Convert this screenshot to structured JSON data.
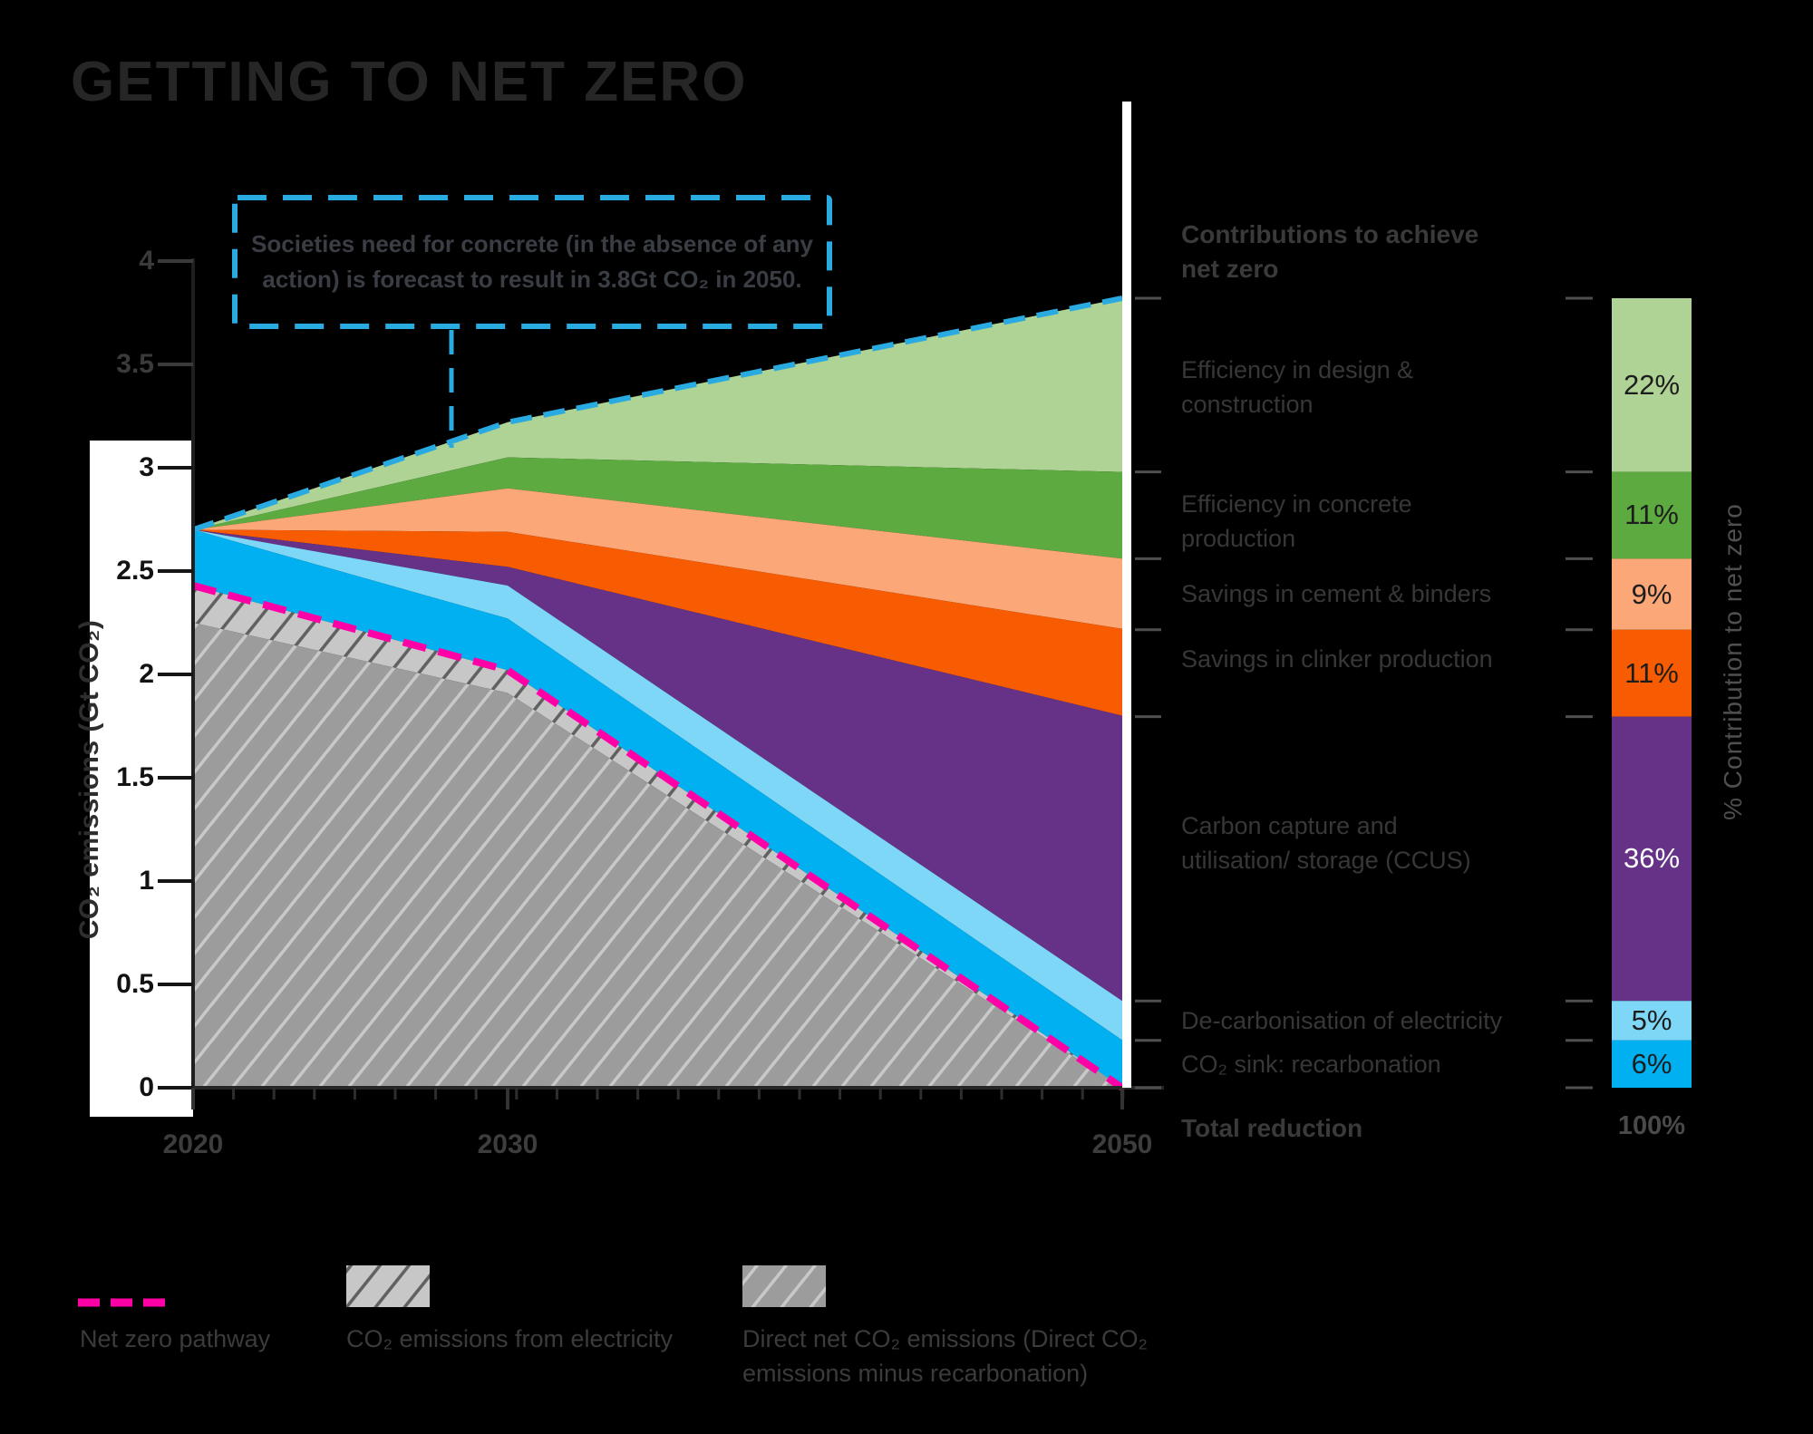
{
  "title": "GETTING TO NET ZERO",
  "annotation": {
    "text": "Societies need for concrete (in the absence of any action) is forecast to result in 3.8Gt CO₂ in 2050.",
    "border_color": "#29abe2"
  },
  "y_axis": {
    "title": "CO₂ emissions (Gt CO₂)",
    "ticks": [
      "4",
      "3.5",
      "3",
      "2.5",
      "2",
      "1.5",
      "1",
      "0.5",
      "0"
    ]
  },
  "x_axis": {
    "ticks": [
      "2020",
      "2030",
      "2050"
    ]
  },
  "contributions": {
    "header": "Contributions to achieve net zero",
    "axis_label": "%  Contribution to net zero",
    "rows": [
      {
        "label": "Efficiency in design & construction",
        "pct": "22%",
        "value": 22,
        "color": "#aed394"
      },
      {
        "label": "Efficiency in concrete production",
        "pct": "11%",
        "value": 11,
        "color": "#5caa40"
      },
      {
        "label": "Savings in cement & binders",
        "pct": "9%",
        "value": 9,
        "color": "#fba778"
      },
      {
        "label": "Savings in clinker production",
        "pct": "11%",
        "value": 11,
        "color": "#f85c03"
      },
      {
        "label": "Carbon capture and utilisation/ storage (CCUS)",
        "pct": "36%",
        "value": 36,
        "color": "#653288"
      },
      {
        "label": "De-carbonisation of electricity",
        "pct": "5%",
        "value": 5,
        "color": "#7ed7f7"
      },
      {
        "label": "CO₂ sink: recarbonation",
        "pct": "6%",
        "value": 6,
        "color": "#00b0f0"
      }
    ],
    "total_label": "Total reduction",
    "total_pct": "100%"
  },
  "legend": [
    {
      "label": "Net zero pathway",
      "swatch": "magenta-dashed-line",
      "color": "#ff00a6"
    },
    {
      "label": "CO₂ emissions from electricity",
      "swatch": "light-gray-hatch"
    },
    {
      "label": "Direct net CO₂ emissions (Direct CO₂ emissions minus recarbonation)",
      "swatch": "dark-gray-hatch"
    }
  ],
  "chart_data": {
    "type": "area",
    "title": "GETTING TO NET ZERO",
    "x": [
      2020,
      2030,
      2050
    ],
    "xlabel": "",
    "ylabel": "CO₂ emissions (Gt CO₂)",
    "ylim": [
      0,
      4
    ],
    "grid": false,
    "legend_position": "bottom",
    "lines": [
      {
        "name": "Societal need for concrete (no action)",
        "style": "dashed",
        "color": "#29abe2",
        "values": [
          2.7,
          3.22,
          3.82
        ]
      },
      {
        "name": "Net zero pathway",
        "style": "dashed",
        "color": "#ff00a6",
        "values": [
          2.43,
          2.02,
          0.0
        ]
      }
    ],
    "layers": [
      {
        "name": "Efficiency in design & construction",
        "fill": "#aed394",
        "top": [
          2.7,
          3.22,
          3.82
        ],
        "bottom": [
          2.7,
          3.05,
          2.98
        ]
      },
      {
        "name": "Efficiency in concrete production",
        "fill": "#5caa40",
        "top": [
          2.7,
          3.05,
          2.98
        ],
        "bottom": [
          2.7,
          2.9,
          2.56
        ]
      },
      {
        "name": "Savings in cement & binders",
        "fill": "#fba778",
        "top": [
          2.7,
          2.9,
          2.56
        ],
        "bottom": [
          2.7,
          2.69,
          2.22
        ]
      },
      {
        "name": "Savings in clinker production",
        "fill": "#f85c03",
        "top": [
          2.7,
          2.69,
          2.22
        ],
        "bottom": [
          2.7,
          2.52,
          1.8
        ]
      },
      {
        "name": "Carbon capture and utilisation/ storage (CCUS)",
        "fill": "#653288",
        "top": [
          2.7,
          2.52,
          1.8
        ],
        "bottom": [
          2.7,
          2.43,
          0.42
        ]
      },
      {
        "name": "De-carbonisation of electricity",
        "fill": "#7ed7f7",
        "top": [
          2.7,
          2.43,
          0.42
        ],
        "bottom": [
          2.7,
          2.27,
          0.23
        ]
      },
      {
        "name": "CO₂ sink: recarbonation",
        "fill": "#00b0f0",
        "top": [
          2.7,
          2.27,
          0.23
        ],
        "bottom": [
          2.43,
          2.02,
          0.0
        ]
      },
      {
        "name": "CO₂ emissions from electricity",
        "fill": "hatch-light",
        "hatch_bg": "#c7c7c7",
        "hatch_line": "#616161",
        "top": [
          2.43,
          2.02,
          0.0
        ],
        "bottom": [
          2.25,
          1.91,
          0.0
        ]
      },
      {
        "name": "Direct net CO₂ emissions (Direct CO₂ emissions minus recarbonation)",
        "fill": "hatch-dark",
        "hatch_bg": "#9c9c9c",
        "hatch_line": "#c8c8c8",
        "top": [
          2.25,
          1.91,
          0.0
        ],
        "bottom": [
          0.0,
          0.0,
          0.0
        ]
      }
    ],
    "annotation": "Societies need for concrete (in the absence of any action) is forecast to result in 3.8Gt CO₂ in 2050."
  }
}
